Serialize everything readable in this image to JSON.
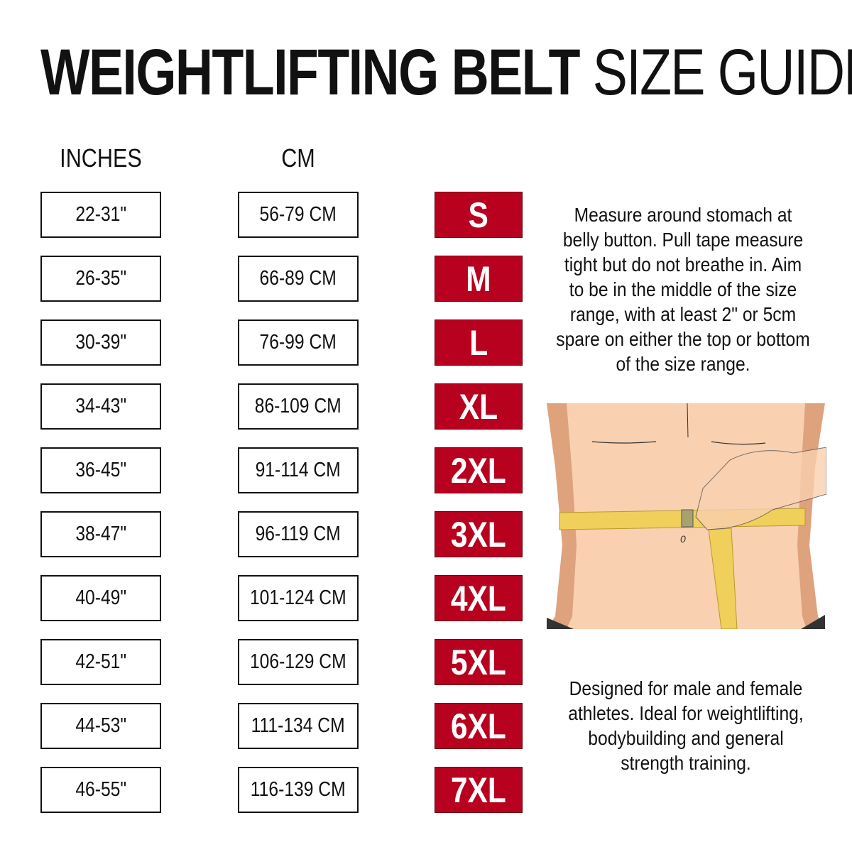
{
  "title": {
    "bold": "WEIGHTLIFTING BELT",
    "light": "SIZE GUIDE"
  },
  "headers": {
    "inches": "INCHES",
    "cm": "CM"
  },
  "rows": [
    {
      "inches": "22-31\"",
      "cm": "56-79 CM",
      "size": "S"
    },
    {
      "inches": "26-35\"",
      "cm": "66-89 CM",
      "size": "M"
    },
    {
      "inches": "30-39\"",
      "cm": "76-99 CM",
      "size": "L"
    },
    {
      "inches": "34-43\"",
      "cm": "86-109 CM",
      "size": "XL"
    },
    {
      "inches": "36-45\"",
      "cm": "91-114 CM",
      "size": "2XL"
    },
    {
      "inches": "38-47\"",
      "cm": "96-119 CM",
      "size": "3XL"
    },
    {
      "inches": "40-49\"",
      "cm": "101-124 CM",
      "size": "4XL"
    },
    {
      "inches": "42-51\"",
      "cm": "106-129 CM",
      "size": "5XL"
    },
    {
      "inches": "44-53\"",
      "cm": "111-134 CM",
      "size": "6XL"
    },
    {
      "inches": "46-55\"",
      "cm": "116-139 CM",
      "size": "7XL"
    }
  ],
  "instructions": "Measure around stomach at belly button. Pull tape measure tight but do not breathe in. Aim to be in the middle of the size range, with at least 2\" or 5cm spare on either the top or bottom of the size range.",
  "description": "Designed for male and female athletes. Ideal for weightlifting, bodybuilding and general strength training.",
  "illustration": {
    "tape_label": "0"
  },
  "colors": {
    "size_badge": "#b8001f",
    "text": "#111111",
    "skin": "#f9d0b0",
    "tape": "#f0cf5a"
  }
}
